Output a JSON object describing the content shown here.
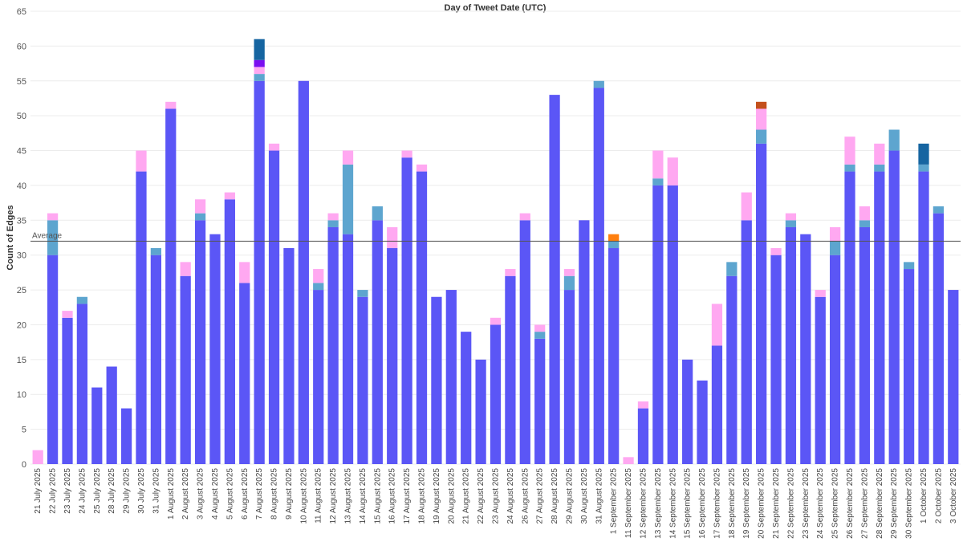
{
  "chart_data": {
    "type": "bar",
    "stacked": true,
    "title": "Day of Tweet Date (UTC)",
    "xlabel": "",
    "ylabel": "Count of Edges",
    "ylim": [
      0,
      65
    ],
    "yticks": [
      0,
      5,
      10,
      15,
      20,
      25,
      30,
      35,
      40,
      45,
      50,
      55,
      60,
      65
    ],
    "average": 32,
    "average_label": "Average",
    "categories": [
      "21 July 2025",
      "22 July 2025",
      "23 July 2025",
      "24 July 2025",
      "25 July 2025",
      "28 July 2025",
      "29 July 2025",
      "30 July 2025",
      "31 July 2025",
      "1 August 2025",
      "2 August 2025",
      "3 August 2025",
      "4 August 2025",
      "5 August 2025",
      "6 August 2025",
      "7 August 2025",
      "8 August 2025",
      "9 August 2025",
      "10 August 2025",
      "11 August 2025",
      "12 August 2025",
      "13 August 2025",
      "14 August 2025",
      "15 August 2025",
      "16 August 2025",
      "17 August 2025",
      "18 August 2025",
      "19 August 2025",
      "20 August 2025",
      "21 August 2025",
      "22 August 2025",
      "23 August 2025",
      "24 August 2025",
      "26 August 2025",
      "27 August 2025",
      "28 August 2025",
      "29 August 2025",
      "30 August 2025",
      "31 August 2025",
      "1 September 2025",
      "11 September 2025",
      "12 September 2025",
      "13 September 2025",
      "14 September 2025",
      "15 September 2025",
      "16 September 2025",
      "17 September 2025",
      "18 September 2025",
      "19 September 2025",
      "20 September 2025",
      "21 September 2025",
      "22 September 2025",
      "23 September 2025",
      "24 September 2025",
      "25 September 2025",
      "26 September 2025",
      "27 September 2025",
      "28 September 2025",
      "29 September 2025",
      "30 September 2025",
      "1 October 2025",
      "2 October 2025",
      "3 October 2025"
    ],
    "series": [
      {
        "name": "blue",
        "color": "#5b56f6",
        "values": [
          0,
          30,
          21,
          23,
          11,
          14,
          8,
          42,
          30,
          51,
          27,
          35,
          33,
          38,
          26,
          55,
          45,
          31,
          55,
          25,
          34,
          33,
          24,
          35,
          31,
          44,
          42,
          24,
          25,
          19,
          15,
          20,
          27,
          35,
          18,
          53,
          25,
          35,
          54,
          31,
          0,
          8,
          40,
          40,
          15,
          12,
          17,
          27,
          35,
          46,
          30,
          34,
          33,
          24,
          30,
          42,
          34,
          42,
          45,
          28,
          42,
          36,
          25
        ]
      },
      {
        "name": "teal",
        "color": "#5da5cf",
        "values": [
          0,
          5,
          0,
          1,
          0,
          0,
          0,
          0,
          1,
          0,
          0,
          1,
          0,
          0,
          0,
          1,
          0,
          0,
          0,
          1,
          1,
          10,
          1,
          2,
          0,
          0,
          0,
          0,
          0,
          0,
          0,
          0,
          0,
          0,
          1,
          0,
          2,
          0,
          1,
          1,
          0,
          0,
          1,
          0,
          0,
          0,
          0,
          2,
          0,
          2,
          0,
          1,
          0,
          0,
          2,
          1,
          1,
          1,
          3,
          1,
          1,
          1,
          0
        ]
      },
      {
        "name": "pink",
        "color": "#ffa8f1",
        "values": [
          2,
          1,
          1,
          0,
          0,
          0,
          0,
          3,
          0,
          1,
          2,
          2,
          0,
          1,
          3,
          1,
          1,
          0,
          0,
          2,
          1,
          2,
          0,
          0,
          3,
          1,
          1,
          0,
          0,
          0,
          0,
          1,
          1,
          1,
          1,
          0,
          1,
          0,
          0,
          0,
          1,
          1,
          4,
          4,
          0,
          0,
          6,
          0,
          4,
          3,
          1,
          1,
          0,
          1,
          2,
          4,
          2,
          3,
          0,
          0,
          0,
          0,
          0
        ]
      },
      {
        "name": "orange-red",
        "color": "#c4501c",
        "values": [
          0,
          0,
          0,
          0,
          0,
          0,
          0,
          0,
          0,
          0,
          0,
          0,
          0,
          0,
          0,
          0,
          0,
          0,
          0,
          0,
          0,
          0,
          0,
          0,
          0,
          0,
          0,
          0,
          0,
          0,
          0,
          0,
          0,
          0,
          0,
          0,
          0,
          0,
          0,
          0,
          0,
          0,
          0,
          0,
          0,
          0,
          0,
          0,
          0,
          1,
          0,
          0,
          0,
          0,
          0,
          0,
          0,
          0,
          0,
          0,
          0,
          0,
          0
        ]
      },
      {
        "name": "orange",
        "color": "#ff7f0e",
        "values": [
          0,
          0,
          0,
          0,
          0,
          0,
          0,
          0,
          0,
          0,
          0,
          0,
          0,
          0,
          0,
          0,
          0,
          0,
          0,
          0,
          0,
          0,
          0,
          0,
          0,
          0,
          0,
          0,
          0,
          0,
          0,
          0,
          0,
          0,
          0,
          0,
          0,
          0,
          0,
          1,
          0,
          0,
          0,
          0,
          0,
          0,
          0,
          0,
          0,
          0,
          0,
          0,
          0,
          0,
          0,
          0,
          0,
          0,
          0,
          0,
          0,
          0,
          0
        ]
      },
      {
        "name": "violet",
        "color": "#7b0ef0",
        "values": [
          0,
          0,
          0,
          0,
          0,
          0,
          0,
          0,
          0,
          0,
          0,
          0,
          0,
          0,
          0,
          1,
          0,
          0,
          0,
          0,
          0,
          0,
          0,
          0,
          0,
          0,
          0,
          0,
          0,
          0,
          0,
          0,
          0,
          0,
          0,
          0,
          0,
          0,
          0,
          0,
          0,
          0,
          0,
          0,
          0,
          0,
          0,
          0,
          0,
          0,
          0,
          0,
          0,
          0,
          0,
          0,
          0,
          0,
          0,
          0,
          0,
          0,
          0
        ]
      },
      {
        "name": "dark-blue",
        "color": "#1665a1",
        "values": [
          0,
          0,
          0,
          0,
          0,
          0,
          0,
          0,
          0,
          0,
          0,
          0,
          0,
          0,
          0,
          3,
          0,
          0,
          0,
          0,
          0,
          0,
          0,
          0,
          0,
          0,
          0,
          0,
          0,
          0,
          0,
          0,
          0,
          0,
          0,
          0,
          0,
          0,
          0,
          0,
          0,
          0,
          0,
          0,
          0,
          0,
          0,
          0,
          0,
          0,
          0,
          0,
          0,
          0,
          0,
          0,
          0,
          0,
          0,
          0,
          3,
          0,
          0
        ]
      }
    ]
  }
}
